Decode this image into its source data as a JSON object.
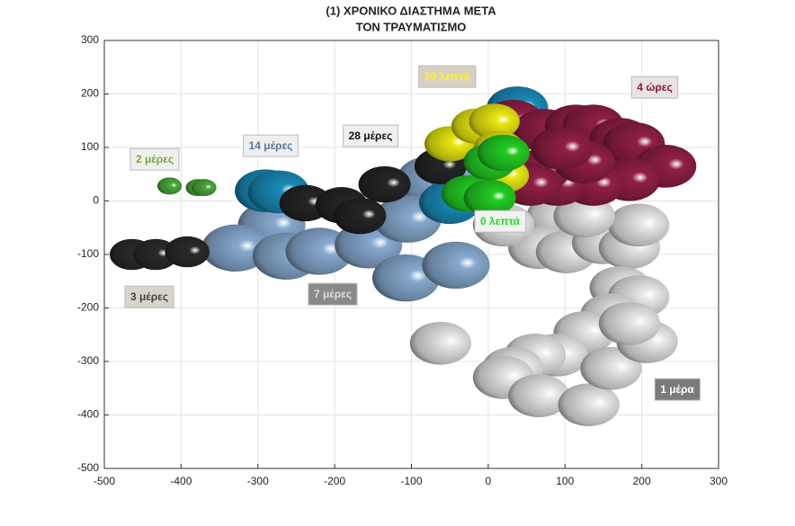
{
  "chart_data": {
    "type": "scatter",
    "title": [
      "(1) ΧΡΟΝΙΚΟ ΔΙΑΣΤΗΜΑ ΜΕΤΑ",
      "ΤΟΝ ΤΡΑΥΜΑΤΙΣΜΟ"
    ],
    "xlim": [
      -500,
      300
    ],
    "xticks": [
      -500,
      -400,
      -300,
      -200,
      -100,
      0,
      100,
      200,
      300
    ],
    "ylim": [
      -500,
      300
    ],
    "yticks": [
      -500,
      -400,
      -300,
      -200,
      -100,
      0,
      100,
      200,
      300
    ],
    "grid": true,
    "series": [
      {
        "name": "1 μέρα",
        "color": "#e6e6e6",
        "size": 40,
        "x": [
          90,
          66,
          102,
          149,
          184,
          196,
          172,
          196,
          160,
          125,
          90,
          61,
          32,
          20,
          66,
          131,
          160,
          207,
          184,
          -62,
          20,
          125
        ],
        "y": [
          -28,
          -87,
          -95,
          -78,
          -87,
          -45,
          -162,
          -179,
          -213,
          -246,
          -288,
          -288,
          -313,
          -330,
          -364,
          -381,
          -313,
          -263,
          -229,
          -266,
          -45,
          -28
        ]
      },
      {
        "name": "7 μέρες",
        "color": "#87a9cf",
        "size": 44,
        "x": [
          -75,
          -40,
          -282,
          -329,
          -263,
          -220,
          -156,
          -105,
          -107,
          -42
        ],
        "y": [
          40,
          60,
          -45,
          -88,
          -103,
          -94,
          -82,
          -34,
          -144,
          -120
        ]
      },
      {
        "name": "3 μέρες",
        "color": "#2a2a2a",
        "size": 29,
        "x": [
          -464,
          -433,
          -392
        ],
        "y": [
          -100,
          -100,
          -95
        ]
      },
      {
        "name": "2 μέρες",
        "color": "#4aa83a",
        "size": 16,
        "x": [
          -415,
          -378,
          -370
        ],
        "y": [
          28,
          25,
          25
        ]
      },
      {
        "name": "14 μέρες",
        "color": "#1a8bb8",
        "size": 40,
        "x": [
          -290,
          -273,
          38,
          -50
        ],
        "y": [
          19,
          17,
          174,
          -3
        ]
      },
      {
        "name": "28 μέρες",
        "color": "#252525",
        "size": 34,
        "x": [
          -238,
          -191,
          -167,
          -135,
          -62
        ],
        "y": [
          -4,
          -8,
          -28,
          31,
          65
        ]
      },
      {
        "name": "4 ώρες",
        "color": "#8f1f45",
        "size": 40,
        "x": [
          32,
          73,
          114,
          137,
          172,
          190,
          231,
          184,
          137,
          90,
          66,
          55,
          125,
          96
        ],
        "y": [
          149,
          132,
          140,
          140,
          115,
          107,
          65,
          40,
          31,
          31,
          56,
          31,
          73,
          98
        ]
      },
      {
        "name": "30 λεπτά",
        "color": "#e8e810",
        "size": 33,
        "x": [
          -50,
          -15,
          8,
          14,
          20
        ],
        "y": [
          107,
          140,
          149,
          98,
          48
        ]
      },
      {
        "name": "0 λεπτά",
        "color": "#22cc22",
        "size": 34,
        "x": [
          -27,
          2,
          2,
          20
        ],
        "y": [
          14,
          6,
          73,
          90
        ]
      }
    ]
  }
}
